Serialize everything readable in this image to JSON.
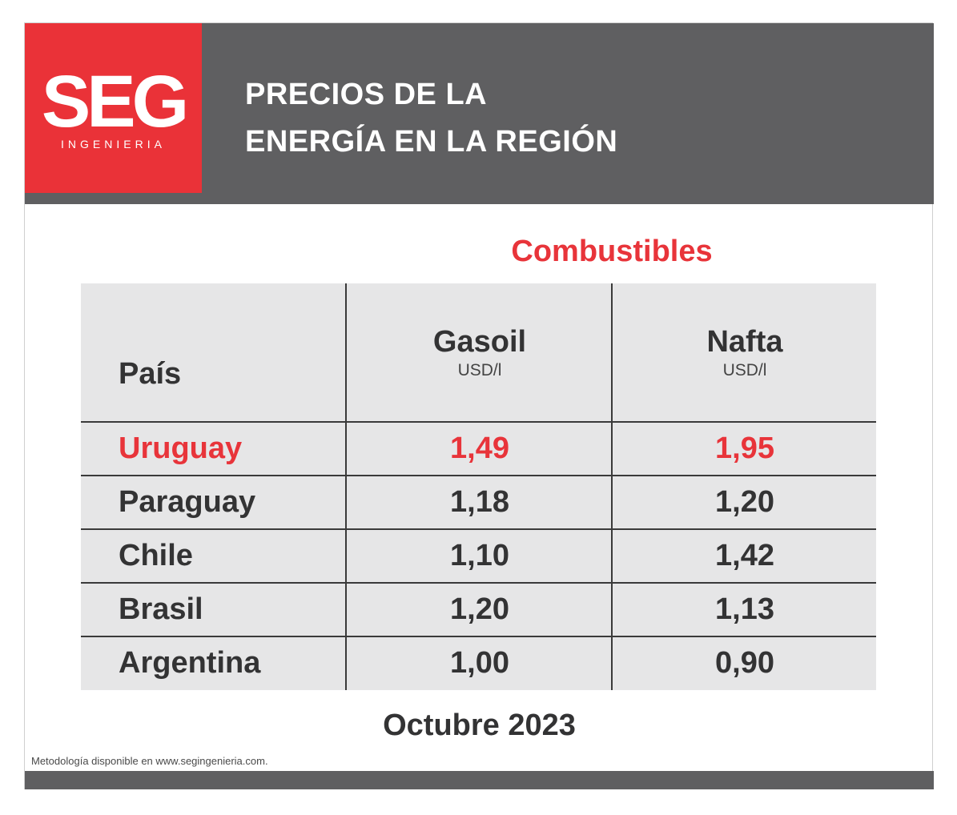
{
  "logo": {
    "brand": "SEG",
    "sub": "INGENIERIA"
  },
  "header": {
    "title_line1": "PRECIOS DE LA",
    "title_line2": "ENERGÍA EN LA REGIÓN"
  },
  "section_title": "Combustibles",
  "table": {
    "headers": [
      {
        "label": "País",
        "unit": ""
      },
      {
        "label": "Gasoil",
        "unit": "USD/l"
      },
      {
        "label": "Nafta",
        "unit": "USD/l"
      }
    ],
    "rows": [
      {
        "country": "Uruguay",
        "gasoil": "1,49",
        "nafta": "1,95",
        "highlight": true
      },
      {
        "country": "Paraguay",
        "gasoil": "1,18",
        "nafta": "1,20",
        "highlight": false
      },
      {
        "country": "Chile",
        "gasoil": "1,10",
        "nafta": "1,42",
        "highlight": false
      },
      {
        "country": "Brasil",
        "gasoil": "1,20",
        "nafta": "1,13",
        "highlight": false
      },
      {
        "country": "Argentina",
        "gasoil": "1,00",
        "nafta": "0,90",
        "highlight": false
      }
    ]
  },
  "date": "Octubre 2023",
  "note": "Metodología disponible en www.segingenieria.com.",
  "colors": {
    "brand_red": "#ea3238",
    "header_gray": "#5f5f61",
    "table_bg": "#e6e6e7",
    "text_dark": "#333334"
  }
}
